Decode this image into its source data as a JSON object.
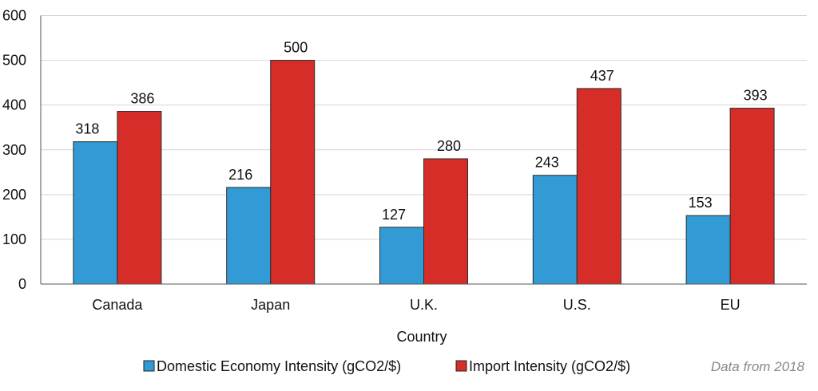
{
  "chart_data": {
    "type": "bar",
    "title": "",
    "xlabel": "Country",
    "ylabel": "",
    "ylim": [
      0,
      600
    ],
    "yticks": [
      0,
      100,
      200,
      300,
      400,
      500,
      600
    ],
    "categories": [
      "Canada",
      "Japan",
      "U.K.",
      "U.S.",
      "EU"
    ],
    "series": [
      {
        "name": "Domestic Economy Intensity (gCO2/$)",
        "color": "#329bd6",
        "values": [
          318,
          216,
          127,
          243,
          153
        ]
      },
      {
        "name": "Import Intensity (gCO2/$)",
        "color": "#d62d28",
        "values": [
          386,
          500,
          280,
          437,
          393
        ]
      }
    ],
    "grid": true,
    "legend": "bottom",
    "note": "Data from 2018"
  }
}
